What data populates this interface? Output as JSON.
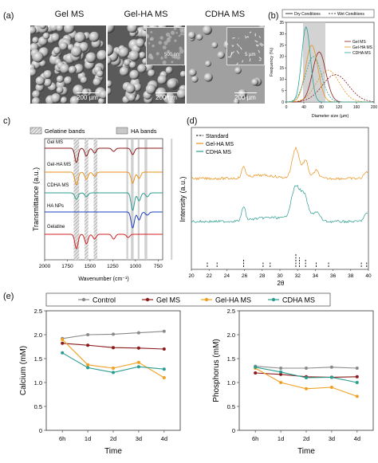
{
  "panel_a": {
    "letter": "(a)",
    "images": [
      {
        "title": "Gel MS",
        "scale": "200 µm"
      },
      {
        "title": "Gel-HA MS",
        "scale": "200 µm",
        "inset_scale": "500 nm"
      },
      {
        "title": "CDHA MS",
        "scale": "200 µm",
        "inset_scale": "5 µm"
      }
    ]
  },
  "chart_data": [
    {
      "panel": "(b)",
      "type": "line",
      "legend_conditions": [
        "Dry Conditions",
        "Wet Conditions"
      ],
      "series": [
        {
          "name": "Gel MS",
          "color": "#8b1a1a"
        },
        {
          "name": "Gel-HA MS",
          "color": "#e8921a"
        },
        {
          "name": "CDHA MS",
          "color": "#2aa198"
        }
      ],
      "xlabel": "Diameter size (µm)",
      "ylabel": "Frequency (%)",
      "xticks": [
        "0",
        "40",
        "80",
        "120",
        "160",
        "200"
      ],
      "yticks": [
        "0",
        "5",
        "10",
        "15",
        "20",
        "25",
        "30",
        "35"
      ]
    },
    {
      "panel": "c)",
      "type": "line",
      "legend": [
        "Gelatine bands",
        "HA bands"
      ],
      "series": [
        {
          "name": "Gel MS",
          "color": "#8b1a1a"
        },
        {
          "name": "Gel-HA MS",
          "color": "#e8921a"
        },
        {
          "name": "CDHA MS",
          "color": "#2a9d8f"
        },
        {
          "name": "HA NPs",
          "color": "#1a3fbf"
        },
        {
          "name": "Gelatine",
          "color": "#d62020"
        }
      ],
      "xlabel": "Wavenumber (cm⁻¹)",
      "ylabel": "Transmittance (a.u.)",
      "xticks": [
        "2000",
        "1750",
        "1500",
        "1250",
        "1000",
        "750"
      ]
    },
    {
      "panel": "(d)",
      "type": "line",
      "legend": [
        "Standard",
        "Gel-HA MS",
        "CDHA MS"
      ],
      "colors": [
        "#000000",
        "#e8921a",
        "#2a9d8f"
      ],
      "xlabel": "2θ",
      "ylabel": "Intensity (a.u.)",
      "xticks": [
        "20",
        "22",
        "24",
        "26",
        "28",
        "30",
        "32",
        "34",
        "36",
        "38",
        "40"
      ],
      "standard_peaks": [
        21.8,
        22.9,
        25.9,
        28.1,
        28.9,
        31.8,
        32.2,
        32.9,
        34.1,
        35.5,
        39.2,
        39.8
      ]
    },
    {
      "panel": "(e)",
      "type": "line",
      "legend": [
        "Control",
        "Gel MS",
        "Gel-HA MS",
        "CDHA MS"
      ],
      "colors": [
        "#8a8a8a",
        "#8b1a1a",
        "#f0a020",
        "#2a9d8f"
      ],
      "categories": [
        "6h",
        "1d",
        "2d",
        "3d",
        "4d"
      ],
      "xlabel": "Time",
      "subplots": [
        {
          "ylabel": "Calcium (mM)",
          "ylim": [
            0,
            2.5
          ],
          "yticks": [
            "0",
            "0.5",
            "1.0",
            "1.5",
            "2.0",
            "2.5"
          ],
          "series": [
            {
              "name": "Control",
              "values": [
                1.92,
                2.0,
                2.01,
                2.04,
                2.07
              ]
            },
            {
              "name": "Gel MS",
              "values": [
                1.82,
                1.78,
                1.73,
                1.72,
                1.7
              ]
            },
            {
              "name": "Gel-HA MS",
              "values": [
                1.9,
                1.37,
                1.3,
                1.42,
                1.1
              ]
            },
            {
              "name": "CDHA MS",
              "values": [
                1.62,
                1.31,
                1.21,
                1.33,
                1.28
              ]
            }
          ]
        },
        {
          "ylabel": "Phosphorus (mM)",
          "ylim": [
            0,
            2.5
          ],
          "yticks": [
            "0",
            "0.5",
            "1.0",
            "1.5",
            "2.0",
            "2.5"
          ],
          "series": [
            {
              "name": "Control",
              "values": [
                1.34,
                1.3,
                1.3,
                1.32,
                1.3
              ]
            },
            {
              "name": "Gel MS",
              "values": [
                1.2,
                1.17,
                1.12,
                1.11,
                1.12
              ]
            },
            {
              "name": "Gel-HA MS",
              "values": [
                1.3,
                1.0,
                0.87,
                0.9,
                0.71
              ]
            },
            {
              "name": "CDHA MS",
              "values": [
                1.32,
                1.22,
                1.1,
                1.11,
                1.0
              ]
            }
          ]
        }
      ]
    }
  ]
}
